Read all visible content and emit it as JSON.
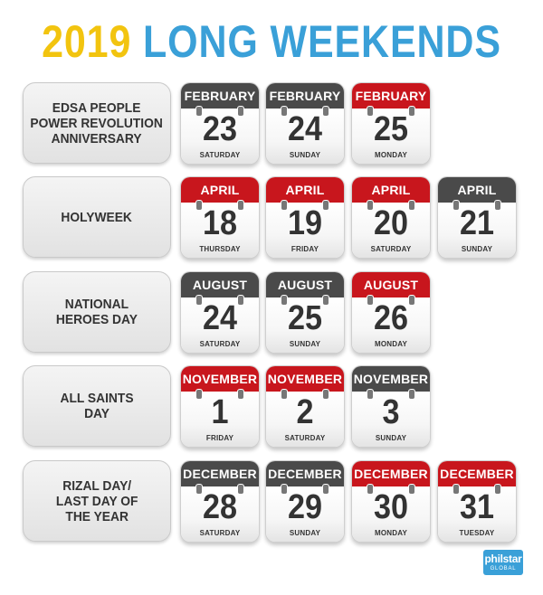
{
  "title": {
    "year": "2019",
    "main": "LONG WEEKENDS"
  },
  "rows": [
    {
      "label": "EDSA PEOPLE\nPOWER REVOLUTION\nANNIVERSARY",
      "dates": [
        {
          "month": "FEBRUARY",
          "date": "23",
          "day": "SATURDAY",
          "color": "dark"
        },
        {
          "month": "FEBRUARY",
          "date": "24",
          "day": "SUNDAY",
          "color": "dark"
        },
        {
          "month": "FEBRUARY",
          "date": "25",
          "day": "MONDAY",
          "color": "red"
        }
      ]
    },
    {
      "label": "HOLYWEEK",
      "dates": [
        {
          "month": "APRIL",
          "date": "18",
          "day": "THURSDAY",
          "color": "red"
        },
        {
          "month": "APRIL",
          "date": "19",
          "day": "FRIDAY",
          "color": "red"
        },
        {
          "month": "APRIL",
          "date": "20",
          "day": "SATURDAY",
          "color": "red"
        },
        {
          "month": "APRIL",
          "date": "21",
          "day": "SUNDAY",
          "color": "dark"
        }
      ]
    },
    {
      "label": "NATIONAL\nHEROES DAY",
      "dates": [
        {
          "month": "AUGUST",
          "date": "24",
          "day": "SATURDAY",
          "color": "dark"
        },
        {
          "month": "AUGUST",
          "date": "25",
          "day": "SUNDAY",
          "color": "dark"
        },
        {
          "month": "AUGUST",
          "date": "26",
          "day": "MONDAY",
          "color": "red"
        }
      ]
    },
    {
      "label": "ALL SAINTS\nDAY",
      "dates": [
        {
          "month": "NOVEMBER",
          "date": "1",
          "day": "FRIDAY",
          "color": "red"
        },
        {
          "month": "NOVEMBER",
          "date": "2",
          "day": "SATURDAY",
          "color": "red"
        },
        {
          "month": "NOVEMBER",
          "date": "3",
          "day": "SUNDAY",
          "color": "dark"
        }
      ]
    },
    {
      "label": "RIZAL DAY/\nLAST DAY OF\nTHE YEAR",
      "dates": [
        {
          "month": "DECEMBER",
          "date": "28",
          "day": "SATURDAY",
          "color": "dark"
        },
        {
          "month": "DECEMBER",
          "date": "29",
          "day": "SUNDAY",
          "color": "dark"
        },
        {
          "month": "DECEMBER",
          "date": "30",
          "day": "MONDAY",
          "color": "red"
        },
        {
          "month": "DECEMBER",
          "date": "31",
          "day": "TUESDAY",
          "color": "red"
        }
      ]
    }
  ],
  "logo": {
    "main": "philstar",
    "sub": "GLOBAL"
  },
  "colors": {
    "red": "#c8161d",
    "dark": "#4a4a4a",
    "year": "#f2c40f",
    "title_blue": "#3aa0d8"
  }
}
